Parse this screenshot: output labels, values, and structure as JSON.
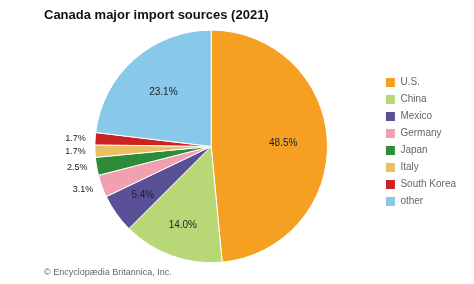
{
  "chart_data": {
    "type": "pie",
    "title": "Canada major import sources (2021)",
    "categories": [
      "U.S.",
      "China",
      "Mexico",
      "Germany",
      "Japan",
      "Italy",
      "South Korea",
      "other"
    ],
    "values": [
      48.5,
      14.0,
      5.4,
      3.1,
      2.5,
      1.7,
      1.7,
      23.1
    ],
    "value_labels": [
      "48.5%",
      "14.0%",
      "5.4%",
      "3.1%",
      "2.5%",
      "1.7%",
      "1.7%",
      "23.1%"
    ],
    "colors": [
      "#F5A020",
      "#B8D878",
      "#5A5098",
      "#F0A0B0",
      "#2E8B3A",
      "#E8C060",
      "#CC2222",
      "#88C8E8"
    ],
    "data_labels": true,
    "legend": "right",
    "annotations": [
      "© Encyclopædia Britannica, Inc."
    ]
  }
}
